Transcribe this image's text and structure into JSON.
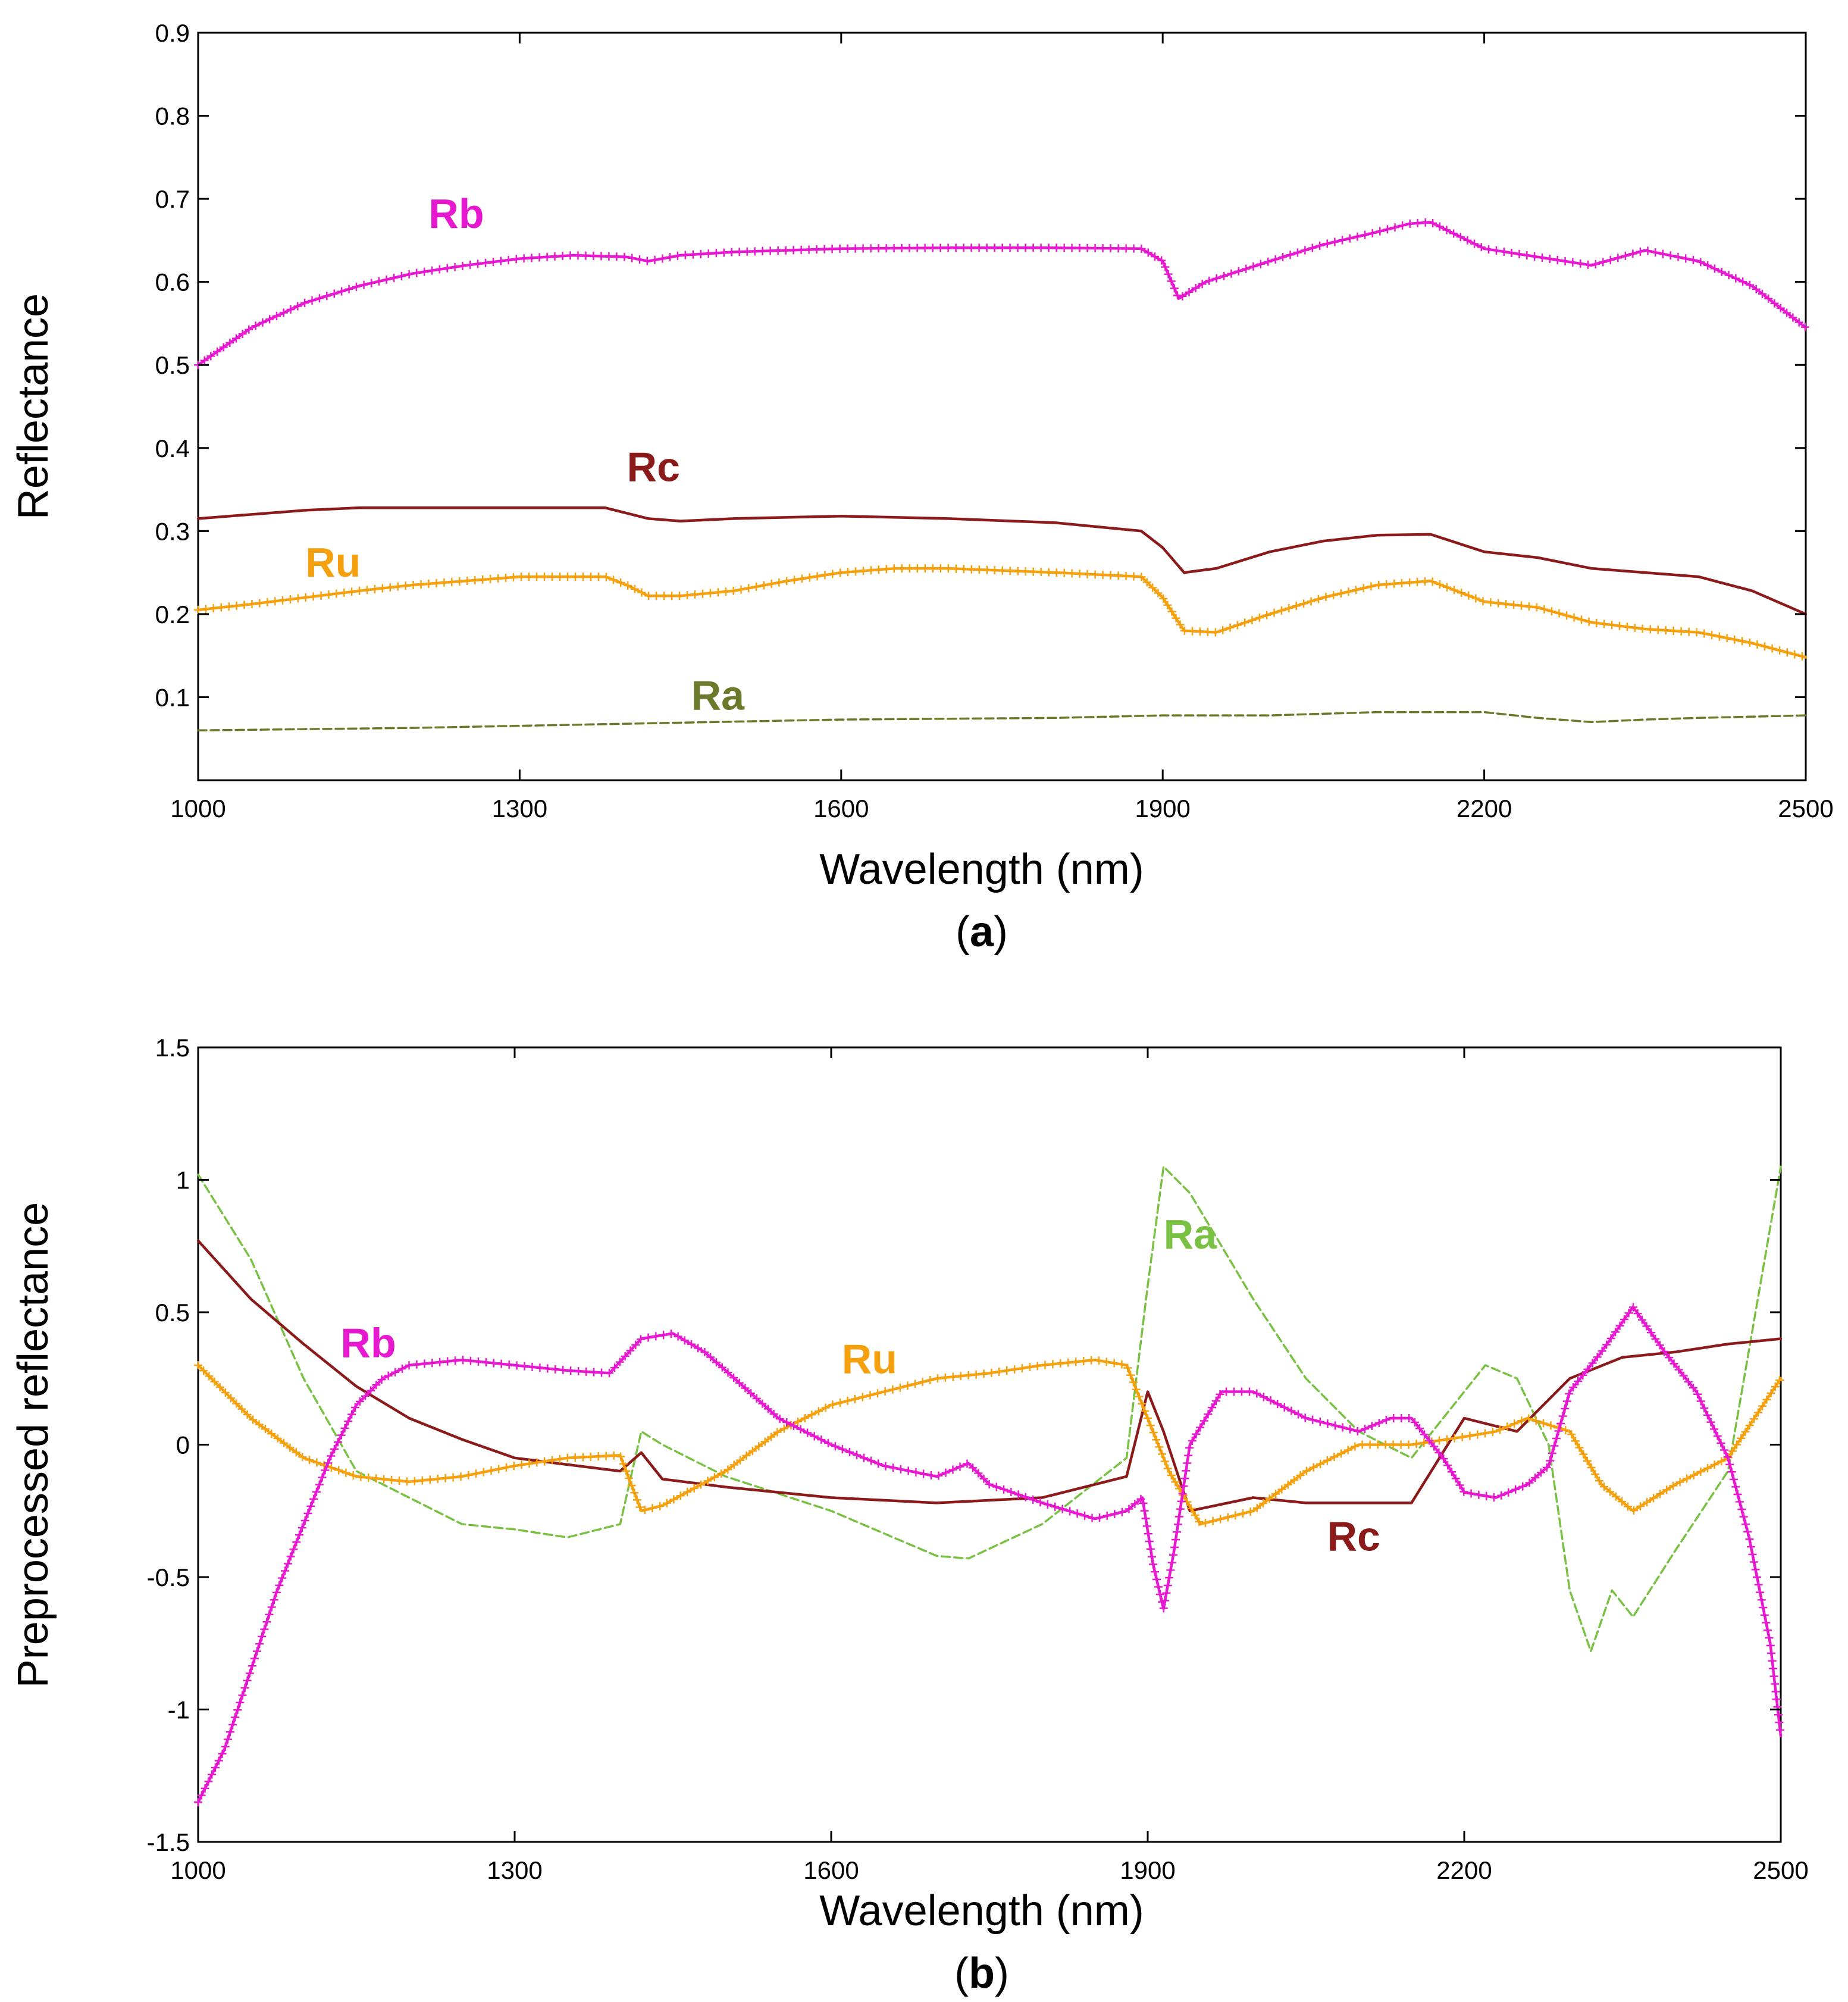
{
  "chart_data": [
    {
      "type": "line",
      "panel": "a",
      "panel_label": "a",
      "xlabel": "Wavelength (nm)",
      "ylabel": "Reflectance",
      "xlim": [
        1000,
        2500
      ],
      "ylim": [
        0,
        0.9
      ],
      "xticks": [
        1000,
        1300,
        1600,
        1900,
        2200,
        2500
      ],
      "xtick_labels": [
        "1000",
        "1300",
        "1600",
        "1900",
        "2200",
        "2500"
      ],
      "yticks": [
        0.1,
        0.2,
        0.3,
        0.4,
        0.5,
        0.6,
        0.7,
        0.8,
        0.9
      ],
      "ytick_labels": [
        "0.1",
        "0.2",
        "0.3",
        "0.4",
        "0.5",
        "0.6",
        "0.7",
        "0.8",
        "0.9"
      ],
      "grid": false,
      "series": [
        {
          "name": "Rb",
          "color": "#e619d0",
          "style": "solid-plus",
          "label_at": [
            1215,
            0.665
          ],
          "x": [
            1000,
            1050,
            1100,
            1150,
            1200,
            1250,
            1300,
            1350,
            1400,
            1420,
            1450,
            1500,
            1600,
            1700,
            1800,
            1880,
            1900,
            1915,
            1940,
            2000,
            2050,
            2100,
            2130,
            2150,
            2200,
            2250,
            2300,
            2350,
            2400,
            2450,
            2500
          ],
          "y": [
            0.5,
            0.545,
            0.575,
            0.595,
            0.61,
            0.62,
            0.628,
            0.632,
            0.63,
            0.625,
            0.632,
            0.636,
            0.64,
            0.641,
            0.641,
            0.64,
            0.625,
            0.58,
            0.6,
            0.625,
            0.645,
            0.66,
            0.67,
            0.672,
            0.64,
            0.63,
            0.62,
            0.638,
            0.625,
            0.595,
            0.545
          ]
        },
        {
          "name": "Rc",
          "color": "#8b1a1a",
          "style": "solid",
          "label_at": [
            1400,
            0.36
          ],
          "x": [
            1000,
            1050,
            1100,
            1150,
            1200,
            1300,
            1380,
            1420,
            1450,
            1500,
            1600,
            1700,
            1800,
            1880,
            1900,
            1920,
            1950,
            2000,
            2050,
            2100,
            2150,
            2200,
            2250,
            2300,
            2350,
            2400,
            2450,
            2500
          ],
          "y": [
            0.315,
            0.32,
            0.325,
            0.328,
            0.328,
            0.328,
            0.328,
            0.315,
            0.312,
            0.315,
            0.318,
            0.315,
            0.31,
            0.3,
            0.28,
            0.25,
            0.255,
            0.275,
            0.288,
            0.295,
            0.296,
            0.275,
            0.268,
            0.255,
            0.25,
            0.245,
            0.228,
            0.2
          ]
        },
        {
          "name": "Ru",
          "color": "#f5a10f",
          "style": "solid-plus",
          "label_at": [
            1100,
            0.245
          ],
          "x": [
            1000,
            1050,
            1100,
            1150,
            1200,
            1250,
            1300,
            1380,
            1400,
            1420,
            1450,
            1500,
            1550,
            1600,
            1650,
            1700,
            1800,
            1880,
            1900,
            1920,
            1950,
            2000,
            2050,
            2100,
            2150,
            2200,
            2250,
            2300,
            2350,
            2400,
            2450,
            2500
          ],
          "y": [
            0.205,
            0.212,
            0.22,
            0.228,
            0.235,
            0.24,
            0.245,
            0.245,
            0.235,
            0.222,
            0.222,
            0.228,
            0.24,
            0.25,
            0.255,
            0.255,
            0.25,
            0.245,
            0.22,
            0.18,
            0.178,
            0.2,
            0.22,
            0.235,
            0.24,
            0.215,
            0.208,
            0.19,
            0.182,
            0.178,
            0.165,
            0.148
          ]
        },
        {
          "name": "Ra",
          "color": "#6b7a2a",
          "style": "dashed",
          "label_at": [
            1460,
            0.085
          ],
          "x": [
            1000,
            1200,
            1400,
            1600,
            1800,
            1900,
            2000,
            2100,
            2200,
            2250,
            2300,
            2350,
            2400,
            2500
          ],
          "y": [
            0.06,
            0.063,
            0.068,
            0.073,
            0.075,
            0.078,
            0.078,
            0.082,
            0.082,
            0.075,
            0.07,
            0.073,
            0.075,
            0.078
          ]
        }
      ]
    },
    {
      "type": "line",
      "panel": "b",
      "panel_label": "b",
      "xlabel": "Wavelength (nm)",
      "ylabel": "Preprocessed reflectance",
      "xlim": [
        1000,
        2500
      ],
      "ylim": [
        -1.5,
        1.5
      ],
      "xticks": [
        1000,
        1300,
        1600,
        1900,
        2200,
        2500
      ],
      "xtick_labels": [
        "1000",
        "1300",
        "1600",
        "1900",
        "2200",
        "2500"
      ],
      "yticks": [
        -1.5,
        -1,
        -0.5,
        0,
        0.5,
        1,
        1.5
      ],
      "ytick_labels": [
        "-1.5",
        "-1",
        "-0.5",
        "0",
        "0.5",
        "1",
        "1.5"
      ],
      "grid": false,
      "series": [
        {
          "name": "Ra",
          "color": "#79c142",
          "style": "dashed",
          "label_at": [
            1915,
            0.74
          ],
          "x": [
            1000,
            1050,
            1100,
            1150,
            1200,
            1250,
            1300,
            1350,
            1400,
            1420,
            1440,
            1500,
            1600,
            1700,
            1730,
            1800,
            1880,
            1900,
            1915,
            1940,
            2000,
            2050,
            2100,
            2150,
            2180,
            2220,
            2250,
            2280,
            2300,
            2320,
            2340,
            2360,
            2400,
            2450,
            2500
          ],
          "y": [
            1.02,
            0.7,
            0.25,
            -0.1,
            -0.2,
            -0.3,
            -0.32,
            -0.35,
            -0.3,
            0.05,
            0.0,
            -0.12,
            -0.25,
            -0.42,
            -0.43,
            -0.3,
            -0.05,
            0.6,
            1.05,
            0.95,
            0.55,
            0.25,
            0.05,
            -0.05,
            0.1,
            0.3,
            0.25,
            0.0,
            -0.55,
            -0.78,
            -0.55,
            -0.65,
            -0.4,
            -0.1,
            1.05
          ]
        },
        {
          "name": "Rc",
          "color": "#8b1a1a",
          "style": "solid",
          "label_at": [
            2070,
            -0.4
          ],
          "x": [
            1000,
            1050,
            1100,
            1150,
            1200,
            1250,
            1300,
            1400,
            1420,
            1440,
            1500,
            1600,
            1700,
            1800,
            1880,
            1900,
            1915,
            1940,
            2000,
            2050,
            2100,
            2150,
            2200,
            2250,
            2300,
            2350,
            2400,
            2450,
            2500
          ],
          "y": [
            0.77,
            0.55,
            0.38,
            0.22,
            0.1,
            0.02,
            -0.05,
            -0.1,
            -0.03,
            -0.13,
            -0.16,
            -0.2,
            -0.22,
            -0.2,
            -0.12,
            0.2,
            0.05,
            -0.25,
            -0.2,
            -0.22,
            -0.22,
            -0.22,
            0.1,
            0.05,
            0.25,
            0.33,
            0.35,
            0.38,
            0.4
          ]
        },
        {
          "name": "Ru",
          "color": "#f5a10f",
          "style": "solid-plus",
          "label_at": [
            1610,
            0.27
          ],
          "x": [
            1000,
            1050,
            1100,
            1150,
            1200,
            1250,
            1300,
            1350,
            1400,
            1420,
            1440,
            1500,
            1550,
            1600,
            1650,
            1700,
            1750,
            1800,
            1850,
            1880,
            1900,
            1920,
            1950,
            2000,
            2050,
            2100,
            2150,
            2200,
            2230,
            2260,
            2300,
            2330,
            2360,
            2400,
            2450,
            2500
          ],
          "y": [
            0.3,
            0.1,
            -0.05,
            -0.12,
            -0.14,
            -0.12,
            -0.08,
            -0.05,
            -0.04,
            -0.25,
            -0.23,
            -0.1,
            0.05,
            0.15,
            0.2,
            0.25,
            0.27,
            0.3,
            0.32,
            0.3,
            0.1,
            -0.1,
            -0.3,
            -0.25,
            -0.1,
            0.0,
            0.0,
            0.03,
            0.05,
            0.1,
            0.05,
            -0.15,
            -0.25,
            -0.15,
            -0.05,
            0.25
          ]
        },
        {
          "name": "Rb",
          "color": "#e619d0",
          "style": "solid-plus",
          "label_at": [
            1135,
            0.33
          ],
          "x": [
            1000,
            1025,
            1050,
            1075,
            1100,
            1125,
            1150,
            1175,
            1200,
            1250,
            1300,
            1350,
            1390,
            1420,
            1450,
            1480,
            1500,
            1550,
            1600,
            1650,
            1700,
            1730,
            1750,
            1800,
            1850,
            1880,
            1895,
            1905,
            1915,
            1925,
            1940,
            1970,
            2000,
            2050,
            2100,
            2130,
            2150,
            2180,
            2200,
            2230,
            2260,
            2280,
            2300,
            2330,
            2360,
            2390,
            2420,
            2450,
            2470,
            2490,
            2500
          ],
          "y": [
            -1.35,
            -1.15,
            -0.85,
            -0.55,
            -0.3,
            -0.05,
            0.15,
            0.25,
            0.3,
            0.32,
            0.3,
            0.28,
            0.27,
            0.4,
            0.42,
            0.35,
            0.28,
            0.1,
            0.0,
            -0.08,
            -0.12,
            -0.07,
            -0.15,
            -0.22,
            -0.28,
            -0.25,
            -0.2,
            -0.45,
            -0.62,
            -0.4,
            0.0,
            0.2,
            0.2,
            0.1,
            0.05,
            0.1,
            0.1,
            -0.05,
            -0.18,
            -0.2,
            -0.15,
            -0.08,
            0.2,
            0.35,
            0.52,
            0.35,
            0.2,
            -0.05,
            -0.35,
            -0.75,
            -1.1
          ]
        }
      ]
    }
  ]
}
